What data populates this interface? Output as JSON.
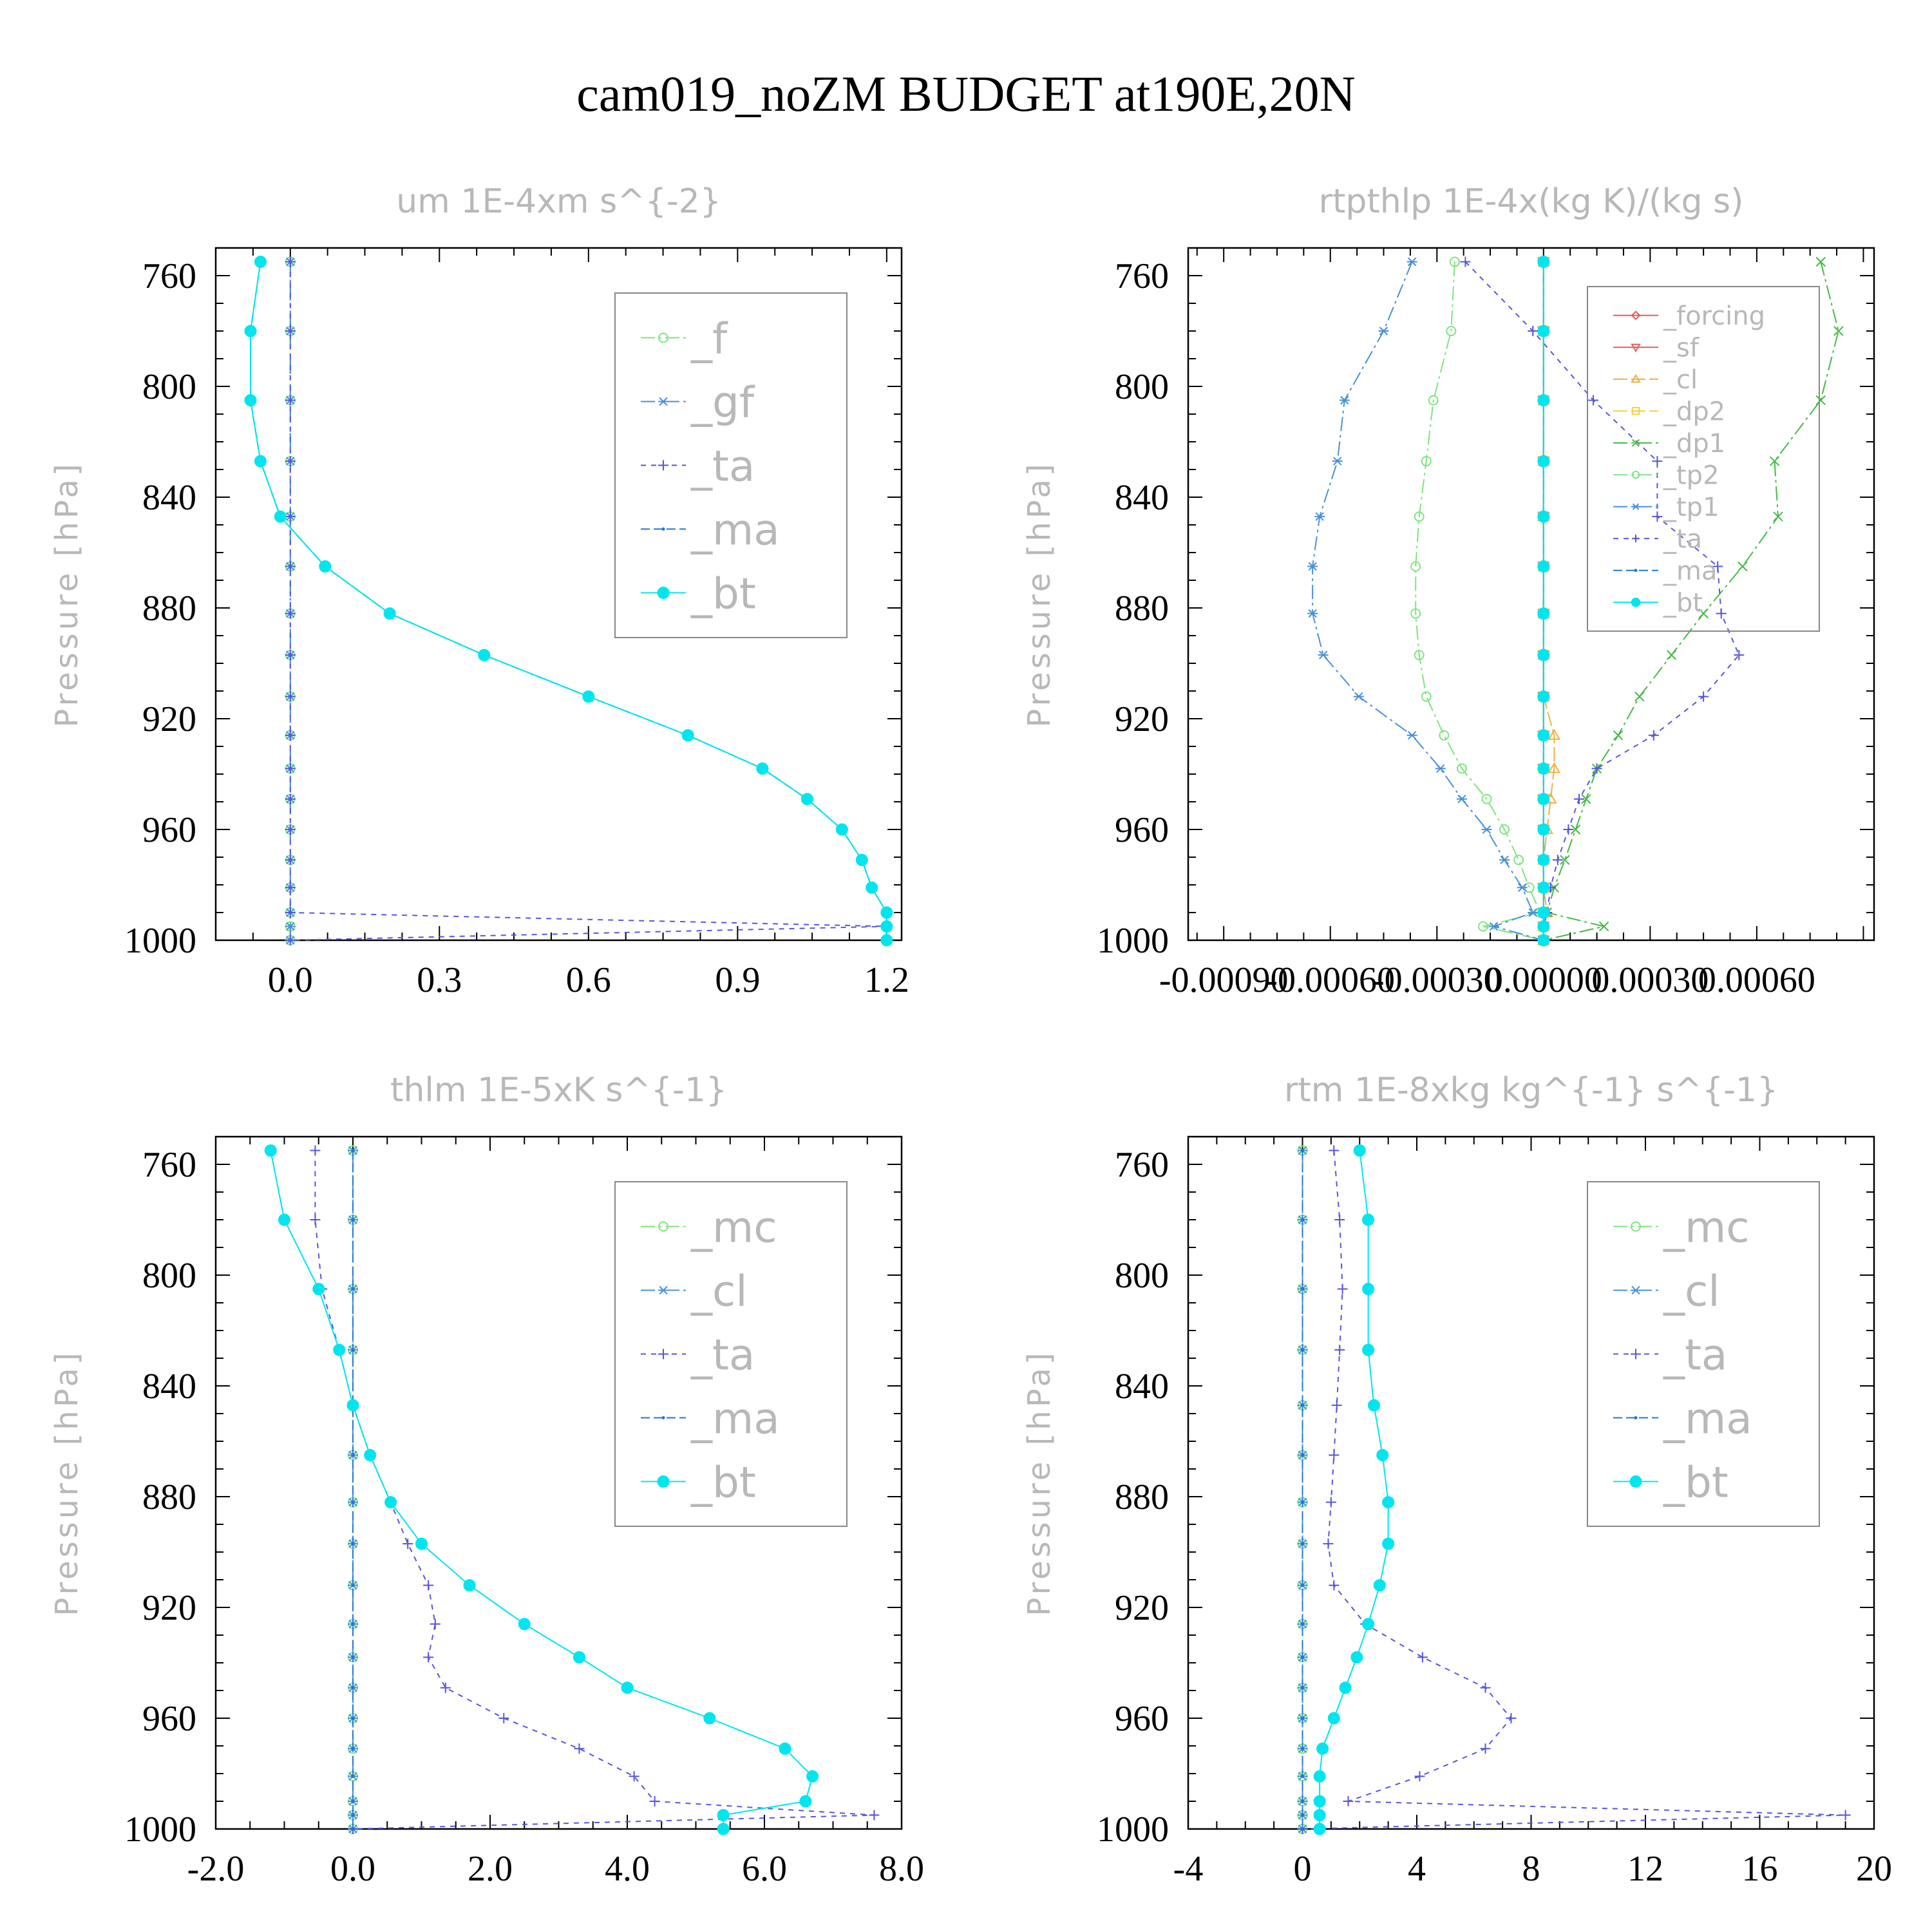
{
  "figure": {
    "title": "cam019_noZM  BUDGET at190E,20N",
    "ylabel": "Pressure [hPa]"
  },
  "colors": {
    "f": "#7ee57e",
    "gf": "#4a90d9",
    "ta": "#5555dd",
    "ma": "#1f77d4",
    "bt": "#00e5ee",
    "forcing": "#e06060",
    "sf": "#e06060",
    "cl": "#f0b040",
    "dp2": "#f0d040",
    "dp1": "#44bb44",
    "tp2": "#7ee57e",
    "tp1": "#4a90d9",
    "mc": "#7ee57e",
    "cl_blue": "#4a90d9"
  },
  "chart_data": [
    {
      "type": "line",
      "title": "um  1E-4xm s^{-2}",
      "ylabel": "Pressure [hPa]",
      "yticks": [
        "760",
        "800",
        "840",
        "880",
        "920",
        "960",
        "1000"
      ],
      "xticks": [
        "0.0",
        "0.3",
        "0.6",
        "0.9",
        "1.2"
      ],
      "xlim": [
        -0.15,
        1.23
      ],
      "ylim": [
        1000,
        750
      ],
      "y_reversed": true,
      "y": [
        755,
        780,
        805,
        827,
        847,
        865,
        882,
        897,
        912,
        926,
        938,
        949,
        960,
        971,
        981,
        990,
        995,
        1000
      ],
      "series": [
        {
          "name": "_f",
          "values": [
            0,
            0,
            0,
            0,
            0,
            0,
            0,
            0,
            0,
            0,
            0,
            0,
            0,
            0,
            0,
            0,
            0,
            0
          ]
        },
        {
          "name": "_gf",
          "values": [
            0,
            0,
            0,
            0,
            0,
            0,
            0,
            0,
            0,
            0,
            0,
            0,
            0,
            0,
            0,
            0,
            0,
            0
          ]
        },
        {
          "name": "_ta",
          "values": [
            0,
            0,
            0,
            0,
            0,
            0,
            0,
            0,
            0,
            0,
            0,
            0,
            0,
            0,
            0,
            0,
            1.2,
            0
          ]
        },
        {
          "name": "_ma",
          "values": [
            -0.06,
            -0.08,
            -0.08,
            -0.06,
            -0.02,
            0.07,
            0.2,
            0.39,
            0.6,
            0.8,
            0.95,
            1.04,
            1.11,
            1.15,
            1.17,
            1.2,
            1.2,
            1.2
          ]
        },
        {
          "name": "_bt",
          "values": [
            -0.06,
            -0.08,
            -0.08,
            -0.06,
            -0.02,
            0.07,
            0.2,
            0.39,
            0.6,
            0.8,
            0.95,
            1.04,
            1.11,
            1.15,
            1.17,
            1.2,
            1.2,
            1.2
          ]
        }
      ]
    },
    {
      "type": "line",
      "title": "rtpthlp  1E-4x(kg K)/(kg s)",
      "ylabel": "Pressure [hPa]",
      "yticks": [
        "760",
        "800",
        "840",
        "880",
        "920",
        "960",
        "1000"
      ],
      "xticks": [
        "-0.00090",
        "-0.00060",
        "-0.00030",
        "0.00000",
        "0.00030",
        "0.00060"
      ],
      "xlim": [
        -0.001,
        0.00093
      ],
      "ylim": [
        1000,
        750
      ],
      "y_reversed": true,
      "y": [
        755,
        780,
        805,
        827,
        847,
        865,
        882,
        897,
        912,
        926,
        938,
        949,
        960,
        971,
        981,
        990,
        995,
        1000
      ],
      "series": [
        {
          "name": "_forcing",
          "values": [
            0,
            0,
            0,
            0,
            0,
            0,
            0,
            0,
            0,
            0,
            0,
            0,
            0,
            0,
            0,
            0,
            0,
            0
          ]
        },
        {
          "name": "_sf",
          "values": [
            0,
            0,
            0,
            0,
            0,
            0,
            0,
            0,
            0,
            0,
            0,
            0,
            0,
            0,
            0,
            0,
            0,
            0
          ]
        },
        {
          "name": "_cl",
          "values": [
            0,
            0,
            0,
            0,
            0,
            0,
            0,
            0,
            0,
            3e-05,
            3e-05,
            2e-05,
            1e-05,
            0,
            0,
            1e-05,
            0,
            0
          ]
        },
        {
          "name": "_dp2",
          "values": [
            0,
            0,
            0,
            0,
            0,
            0,
            0,
            0,
            0,
            0,
            0,
            0,
            0,
            0,
            0,
            0,
            0,
            0
          ]
        },
        {
          "name": "_dp1",
          "values": [
            0.00078,
            0.00083,
            0.00078,
            0.00065,
            0.00066,
            0.00056,
            0.00045,
            0.00036,
            0.00027,
            0.00021,
            0.00015,
            0.00012,
            9e-05,
            6e-05,
            3e-05,
            1e-05,
            0.00017,
            0
          ]
        },
        {
          "name": "_tp2",
          "values": [
            -0.00025,
            -0.00026,
            -0.00031,
            -0.00033,
            -0.00035,
            -0.00036,
            -0.00036,
            -0.00035,
            -0.00033,
            -0.00028,
            -0.00023,
            -0.00016,
            -0.00011,
            -7e-05,
            -4e-05,
            -1e-05,
            -0.00017,
            0
          ]
        },
        {
          "name": "_tp1",
          "values": [
            -0.00037,
            -0.00045,
            -0.00056,
            -0.00058,
            -0.00063,
            -0.00065,
            -0.00065,
            -0.00062,
            -0.00052,
            -0.00037,
            -0.00029,
            -0.00023,
            -0.00016,
            -0.00011,
            -6e-05,
            -3e-05,
            -0.00014,
            0
          ]
        },
        {
          "name": "_ta",
          "values": [
            -0.00022,
            -3e-05,
            0.00014,
            0.00032,
            0.00032,
            0.00049,
            0.0005,
            0.00055,
            0.00045,
            0.00031,
            0.00015,
            0.0001,
            7e-05,
            4e-05,
            2e-05,
            1e-05,
            0,
            0
          ]
        },
        {
          "name": "_ma",
          "values": [
            0,
            0,
            0,
            0,
            0,
            0,
            0,
            0,
            0,
            0,
            0,
            0,
            0,
            0,
            0,
            0,
            0,
            0
          ]
        },
        {
          "name": "_bt",
          "values": [
            0,
            0,
            0,
            0,
            0,
            0,
            0,
            0,
            0,
            0,
            0,
            0,
            0,
            0,
            0,
            0,
            0,
            0
          ]
        }
      ]
    },
    {
      "type": "line",
      "title": "thlm  1E-5xK s^{-1}",
      "ylabel": "Pressure [hPa]",
      "yticks": [
        "760",
        "800",
        "840",
        "880",
        "920",
        "960",
        "1000"
      ],
      "xticks": [
        "-2.0",
        "0.0",
        "2.0",
        "4.0",
        "6.0",
        "8.0"
      ],
      "xlim": [
        -2.0,
        8.0
      ],
      "ylim": [
        1000,
        750
      ],
      "y_reversed": true,
      "y": [
        755,
        780,
        805,
        827,
        847,
        865,
        882,
        897,
        912,
        926,
        938,
        949,
        960,
        971,
        981,
        990,
        995,
        1000
      ],
      "series": [
        {
          "name": "_mc",
          "values": [
            0,
            0,
            0,
            0,
            0,
            0,
            0,
            0,
            0,
            0,
            0,
            0,
            0,
            0,
            0,
            0,
            0,
            0
          ]
        },
        {
          "name": "_cl",
          "values": [
            0,
            0,
            0,
            0,
            0,
            0,
            0,
            0,
            0,
            0,
            0,
            0,
            0,
            0,
            0,
            0,
            0,
            0
          ]
        },
        {
          "name": "_ta",
          "values": [
            -0.55,
            -0.55,
            -0.45,
            -0.2,
            0.0,
            0.25,
            0.55,
            0.8,
            1.1,
            1.2,
            1.1,
            1.35,
            2.2,
            3.3,
            4.1,
            4.4,
            7.6,
            0
          ]
        },
        {
          "name": "_ma",
          "values": [
            0,
            0,
            0,
            0,
            0,
            0,
            0,
            0,
            0,
            0,
            0,
            0,
            0,
            0,
            0,
            0,
            0,
            0
          ]
        },
        {
          "name": "_bt",
          "values": [
            -1.2,
            -1.0,
            -0.5,
            -0.2,
            0.0,
            0.25,
            0.55,
            1.0,
            1.7,
            2.5,
            3.3,
            4.0,
            5.2,
            6.3,
            6.7,
            6.6,
            5.4,
            5.4
          ]
        }
      ]
    },
    {
      "type": "line",
      "title": "rtm  1E-8xkg kg^{-1} s^{-1}",
      "ylabel": "Pressure [hPa]",
      "yticks": [
        "760",
        "800",
        "840",
        "880",
        "920",
        "960",
        "1000"
      ],
      "xticks": [
        "-4",
        "0",
        "4",
        "8",
        "12",
        "16",
        "20"
      ],
      "xlim": [
        -4,
        20
      ],
      "ylim": [
        1000,
        750
      ],
      "y_reversed": true,
      "y": [
        755,
        780,
        805,
        827,
        847,
        865,
        882,
        897,
        912,
        926,
        938,
        949,
        960,
        971,
        981,
        990,
        995,
        1000
      ],
      "series": [
        {
          "name": "_mc",
          "values": [
            0,
            0,
            0,
            0,
            0,
            0,
            0,
            0,
            0,
            0,
            0,
            0,
            0,
            0,
            0,
            0,
            0,
            0
          ]
        },
        {
          "name": "_cl",
          "values": [
            0,
            0,
            0,
            0,
            0,
            0,
            0,
            0,
            0,
            0,
            0,
            0,
            0,
            0,
            0,
            0,
            0,
            0
          ]
        },
        {
          "name": "_ta",
          "values": [
            1.1,
            1.3,
            1.4,
            1.3,
            1.2,
            1.1,
            1.0,
            0.9,
            1.1,
            2.2,
            4.2,
            6.4,
            7.3,
            6.4,
            4.1,
            1.6,
            19.0,
            0
          ]
        },
        {
          "name": "_ma",
          "values": [
            0,
            0,
            0,
            0,
            0,
            0,
            0,
            0,
            0,
            0,
            0,
            0,
            0,
            0,
            0,
            0,
            0,
            0
          ]
        },
        {
          "name": "_bt",
          "values": [
            2.0,
            2.3,
            2.3,
            2.3,
            2.5,
            2.8,
            3.0,
            3.0,
            2.7,
            2.3,
            1.9,
            1.5,
            1.1,
            0.7,
            0.6,
            0.6,
            0.6,
            0.6
          ]
        }
      ]
    }
  ]
}
